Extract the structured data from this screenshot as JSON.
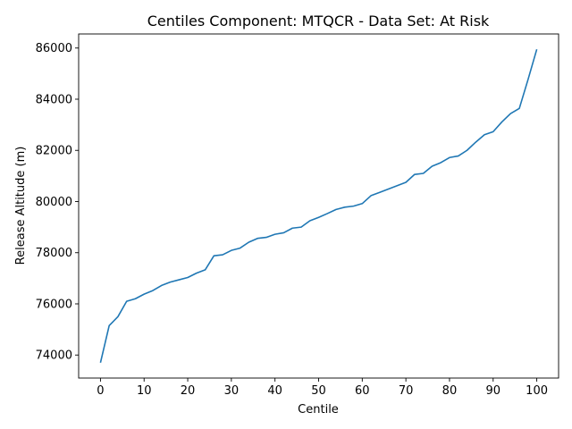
{
  "chart_data": {
    "type": "line",
    "title": "Centiles Component: MTQCR - Data Set: At Risk",
    "xlabel": "Centile",
    "ylabel": "Release Altitude (m)",
    "xlim": [
      -5,
      105
    ],
    "ylim": [
      73100,
      86550
    ],
    "xticks": [
      0,
      10,
      20,
      30,
      40,
      50,
      60,
      70,
      80,
      90,
      100
    ],
    "yticks": [
      74000,
      76000,
      78000,
      80000,
      82000,
      84000,
      86000
    ],
    "grid": false,
    "line_color": "#1f77b4",
    "series": [
      {
        "x": [
          0,
          2,
          4,
          6,
          8,
          10,
          12,
          14,
          16,
          18,
          20,
          22,
          24,
          26,
          28,
          30,
          32,
          34,
          36,
          38,
          40,
          42,
          44,
          46,
          48,
          50,
          52,
          54,
          56,
          58,
          60,
          62,
          64,
          66,
          68,
          70,
          72,
          74,
          76,
          78,
          80,
          82,
          84,
          86,
          88,
          90,
          92,
          94,
          96,
          98,
          100
        ],
        "y": [
          73700,
          75150,
          75500,
          76100,
          76200,
          76380,
          76520,
          76720,
          76850,
          76940,
          77030,
          77200,
          77330,
          77880,
          77920,
          78090,
          78180,
          78410,
          78560,
          78600,
          78720,
          78780,
          78960,
          79000,
          79250,
          79380,
          79530,
          79690,
          79780,
          79820,
          79920,
          80230,
          80360,
          80490,
          80620,
          80750,
          81060,
          81100,
          81380,
          81520,
          81720,
          81780,
          82000,
          82320,
          82610,
          82730,
          83110,
          83440,
          83640,
          84770,
          85950
        ]
      }
    ]
  }
}
